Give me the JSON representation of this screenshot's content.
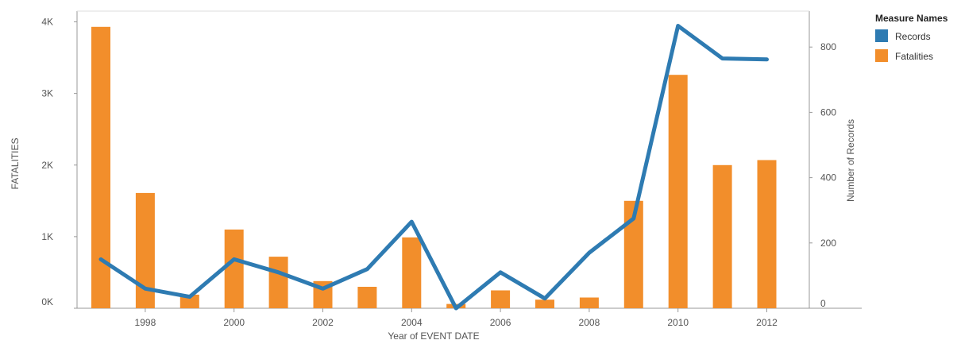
{
  "chart_data": {
    "type": "bar+line",
    "title": "",
    "xlabel": "Year of EVENT DATE",
    "ylabel_left": "FATALITIES",
    "ylabel_right": "Number of Records",
    "x": [
      1997,
      1998,
      1999,
      2000,
      2001,
      2002,
      2003,
      2004,
      2005,
      2006,
      2007,
      2008,
      2009,
      2010,
      2011,
      2012
    ],
    "x_tick_labels": [
      "1998",
      "2000",
      "2002",
      "2004",
      "2006",
      "2008",
      "2010",
      "2012"
    ],
    "x_tick_values": [
      1998,
      2000,
      2002,
      2004,
      2006,
      2008,
      2010,
      2012
    ],
    "y_left_ticks": [
      {
        "value": 0,
        "label": "0K"
      },
      {
        "value": 1000,
        "label": "1K"
      },
      {
        "value": 2000,
        "label": "2K"
      },
      {
        "value": 3000,
        "label": "3K"
      },
      {
        "value": 4000,
        "label": "4K"
      }
    ],
    "y_right_ticks": [
      {
        "value": 0,
        "label": "0"
      },
      {
        "value": 200,
        "label": "200"
      },
      {
        "value": 400,
        "label": "400"
      },
      {
        "value": 600,
        "label": "600"
      },
      {
        "value": 800,
        "label": "800"
      }
    ],
    "ylim_left": [
      0,
      4150
    ],
    "ylim_right": [
      0,
      910
    ],
    "series": [
      {
        "name": "Fatalities",
        "kind": "bar",
        "axis": "left",
        "color": "#f28e2b",
        "values": [
          3930,
          1610,
          190,
          1100,
          720,
          380,
          300,
          990,
          60,
          250,
          120,
          150,
          1500,
          3260,
          2000,
          2070
        ]
      },
      {
        "name": "Records",
        "kind": "line",
        "axis": "right",
        "color": "#2e7bb2",
        "values": [
          150,
          60,
          35,
          150,
          110,
          60,
          120,
          265,
          0,
          110,
          30,
          170,
          275,
          865,
          765,
          762
        ]
      }
    ],
    "legend": {
      "title": "Measure Names",
      "placement": "top-right",
      "items": [
        {
          "name": "Records",
          "color": "#2e7bb2"
        },
        {
          "name": "Fatalities",
          "color": "#f28e2b"
        }
      ]
    },
    "grid": false
  }
}
